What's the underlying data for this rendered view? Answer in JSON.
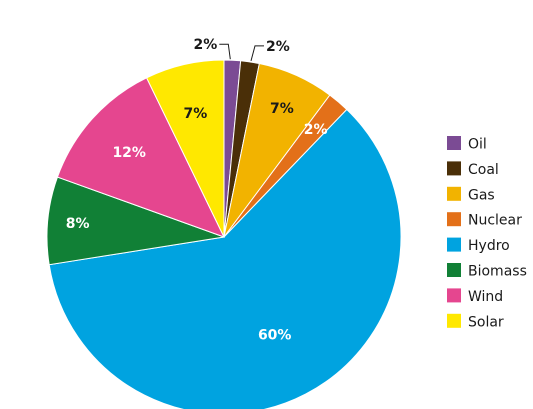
{
  "chart_data": {
    "type": "pie",
    "legend_position": "right",
    "slices": [
      {
        "label": "Oil",
        "value": 1.5,
        "display": "2%",
        "color": "#7b4b94"
      },
      {
        "label": "Coal",
        "value": 1.7,
        "display": "2%",
        "color": "#4a2f08"
      },
      {
        "label": "Gas",
        "value": 7.0,
        "display": "7%",
        "color": "#f2b300"
      },
      {
        "label": "Nuclear",
        "value": 2.0,
        "display": "2%",
        "color": "#e37019"
      },
      {
        "label": "Hydro",
        "value": 60.3,
        "display": "60%",
        "color": "#00a3e0"
      },
      {
        "label": "Biomass",
        "value": 8.0,
        "display": "8%",
        "color": "#118036"
      },
      {
        "label": "Wind",
        "value": 12.3,
        "display": "12%",
        "color": "#e5468f"
      },
      {
        "label": "Solar",
        "value": 7.2,
        "display": "7%",
        "color": "#ffe800"
      }
    ]
  }
}
